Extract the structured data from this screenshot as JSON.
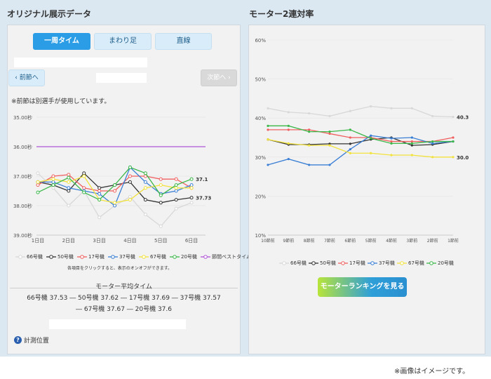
{
  "left": {
    "title": "オリジナル展示データ",
    "tabs": [
      {
        "label": "一周タイム",
        "active": true
      },
      {
        "label": "まわり足",
        "active": false
      },
      {
        "label": "直線",
        "active": false
      }
    ],
    "prev_label": "‹ 前節へ",
    "next_label": "次節へ ›",
    "note": "※前節は別選手が使用しています。",
    "legend": [
      {
        "label": "66号機",
        "color": "#d8d8d8"
      },
      {
        "label": "50号機",
        "color": "#333333"
      },
      {
        "label": "17号機",
        "color": "#f06060"
      },
      {
        "label": "37号機",
        "color": "#3a7fd5"
      },
      {
        "label": "67号機",
        "color": "#f2e23c"
      },
      {
        "label": "20号機",
        "color": "#3cb84a"
      },
      {
        "label": "節間ベストタイム",
        "color": "#b056d6"
      }
    ],
    "legend_hint": "各項目をクリックすると、表示のオンオフができます。",
    "avg_title": "モーター平均タイム",
    "avg_line1": "66号機 37.53 ― 50号機 37.62 ― 17号機 37.69 ― 37号機 37.57",
    "avg_line2": "― 67号機 37.67 ― 20号機 37.6",
    "measure_label": "計測位置",
    "help_icon": "question-circle-icon"
  },
  "right": {
    "title": "モーター2連対率",
    "legend": [
      {
        "label": "66号機",
        "color": "#d8d8d8"
      },
      {
        "label": "50号機",
        "color": "#333333"
      },
      {
        "label": "17号機",
        "color": "#f06060"
      },
      {
        "label": "37号機",
        "color": "#3a7fd5"
      },
      {
        "label": "67号機",
        "color": "#f2e23c"
      },
      {
        "label": "20号機",
        "color": "#3cb84a"
      }
    ],
    "rank_button": "モーターランキングを見る"
  },
  "caption": "※画像はイメージです。",
  "chart_data": [
    {
      "type": "line",
      "y_inverted": true,
      "yticks": [
        "35.00秒",
        "36.00秒",
        "37.00秒",
        "38.00秒",
        "39.00秒"
      ],
      "ylim": [
        35,
        39
      ],
      "categories": [
        "1日目",
        "2日目",
        "3日目",
        "4日目",
        "5日目",
        "6日目"
      ],
      "x_positions": [
        1,
        2,
        3,
        4,
        5,
        6
      ],
      "best_time": 36.0,
      "series": [
        {
          "name": "66号機",
          "color": "#d8d8d8",
          "x": [
            1,
            1.5,
            2,
            2.5,
            3,
            3.5,
            4,
            4.5,
            5,
            5.5,
            6
          ],
          "y": [
            36.9,
            37.4,
            38.0,
            37.5,
            38.4,
            38.0,
            37.7,
            38.3,
            38.7,
            38.1,
            37.9
          ]
        },
        {
          "name": "50号機",
          "color": "#333333",
          "x": [
            1,
            1.5,
            2,
            2.5,
            3,
            3.5,
            4,
            4.5,
            5,
            5.5,
            6
          ],
          "y": [
            37.2,
            37.3,
            37.5,
            36.9,
            37.4,
            37.3,
            37.2,
            37.8,
            37.9,
            37.8,
            37.73
          ]
        },
        {
          "name": "17号機",
          "color": "#f06060",
          "x": [
            1,
            1.5,
            2,
            2.5,
            3,
            3.5,
            4,
            4.5,
            5,
            5.5,
            6
          ],
          "y": [
            37.3,
            37.0,
            36.95,
            37.4,
            37.5,
            37.5,
            37.0,
            37.0,
            37.1,
            37.1,
            37.4
          ]
        },
        {
          "name": "37号機",
          "color": "#3a7fd5",
          "x": [
            1,
            1.5,
            2,
            2.5,
            3,
            3.5,
            4,
            4.5,
            5,
            5.5,
            6
          ],
          "y": [
            37.2,
            37.2,
            37.4,
            37.5,
            37.6,
            38.0,
            36.7,
            37.2,
            37.6,
            37.5,
            37.3
          ]
        },
        {
          "name": "67号機",
          "color": "#f2e23c",
          "x": [
            1,
            1.5,
            2,
            2.5,
            3,
            3.5,
            4,
            4.5,
            5,
            5.5,
            6
          ],
          "y": [
            37.2,
            37.1,
            37.2,
            37.0,
            37.8,
            37.9,
            37.8,
            37.4,
            37.3,
            37.4,
            37.4
          ]
        },
        {
          "name": "20号機",
          "color": "#3cb84a",
          "x": [
            1,
            1.5,
            2,
            2.5,
            3,
            3.5,
            4,
            4.5,
            5,
            5.5,
            6
          ],
          "y": [
            37.55,
            37.3,
            37.05,
            37.55,
            37.8,
            37.3,
            36.7,
            36.9,
            37.65,
            37.3,
            37.1
          ]
        }
      ],
      "end_labels": [
        {
          "series": "20号機",
          "text": "37.1"
        },
        {
          "series": "50号機",
          "text": "37.73"
        }
      ]
    },
    {
      "type": "line",
      "yticks": [
        "60%",
        "50%",
        "40%",
        "30%",
        "20%",
        "10%"
      ],
      "ylim": [
        10,
        60
      ],
      "categories": [
        "10節前",
        "9節前",
        "8節前",
        "7節前",
        "6節前",
        "5節前",
        "4節前",
        "3節前",
        "2節前",
        "1節前"
      ],
      "series": [
        {
          "name": "66号機",
          "color": "#d8d8d8",
          "values": [
            42.5,
            41.5,
            41.2,
            40.5,
            41.8,
            43.0,
            42.5,
            42.5,
            40.5,
            40.3
          ]
        },
        {
          "name": "50号機",
          "color": "#333333",
          "values": [
            34.5,
            33.2,
            33.2,
            33.4,
            33.4,
            34.5,
            35.0,
            33.0,
            33.2,
            34.0
          ]
        },
        {
          "name": "17号機",
          "color": "#f06060",
          "values": [
            37.0,
            37.0,
            37.0,
            36.0,
            35.0,
            35.0,
            34.0,
            34.0,
            34.0,
            35.0
          ]
        },
        {
          "name": "37号機",
          "color": "#3a7fd5",
          "values": [
            28.0,
            29.5,
            28.0,
            28.0,
            32.0,
            35.5,
            34.8,
            35.0,
            33.5,
            34.0
          ]
        },
        {
          "name": "67号機",
          "color": "#f2e23c",
          "values": [
            34.5,
            33.5,
            33.0,
            33.0,
            31.0,
            31.0,
            30.5,
            30.5,
            30.0,
            30.0
          ]
        },
        {
          "name": "20号機",
          "color": "#3cb84a",
          "values": [
            38.0,
            38.0,
            36.5,
            36.5,
            37.0,
            34.8,
            33.5,
            33.5,
            34.0,
            34.0
          ]
        }
      ],
      "end_labels": [
        {
          "series": "66号機",
          "text": "40.3"
        },
        {
          "series": "67号機",
          "text": "30.0"
        }
      ]
    }
  ]
}
